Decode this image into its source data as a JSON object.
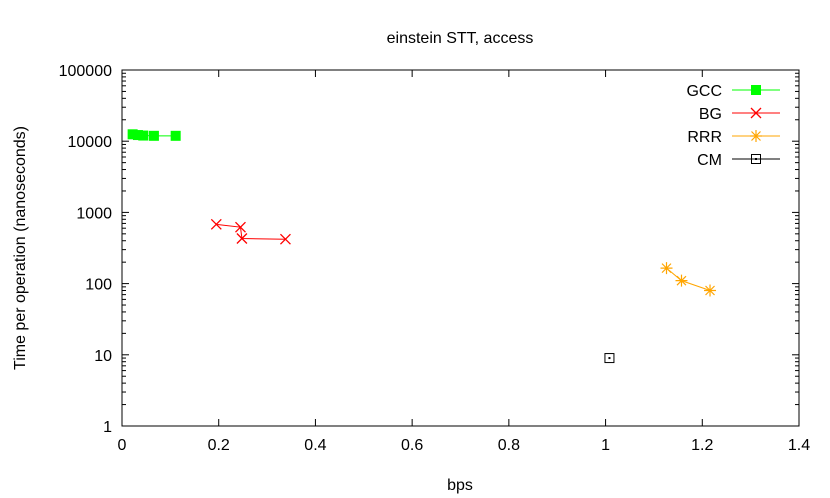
{
  "chart_data": {
    "type": "scatter",
    "title": "einstein STT, access",
    "xlabel": "bps",
    "ylabel": "Time per operation (nanoseconds)",
    "xlim": [
      0,
      1.4
    ],
    "ylim": [
      1,
      100000
    ],
    "y_scale": "log",
    "x_ticks": [
      0,
      0.2,
      0.4,
      0.6,
      0.8,
      1,
      1.2,
      1.4
    ],
    "x_tick_labels": [
      "0",
      "0.2",
      "0.4",
      "0.6",
      "0.8",
      "1",
      "1.2",
      "1.4"
    ],
    "y_ticks": [
      1,
      10,
      100,
      1000,
      10000,
      100000
    ],
    "y_tick_labels": [
      "1",
      "10",
      "100",
      "1000",
      "10000",
      "100000"
    ],
    "grid": false,
    "legend_position": "top-right",
    "series": [
      {
        "name": "GCC",
        "color": "#00ff00",
        "marker": "filled-square",
        "x": [
          0.022,
          0.033,
          0.044,
          0.066,
          0.111
        ],
        "y": [
          12500,
          12200,
          12000,
          11900,
          11900
        ]
      },
      {
        "name": "BG",
        "color": "#ff0000",
        "marker": "cross",
        "x": [
          0.195,
          0.245,
          0.248,
          0.338
        ],
        "y": [
          680,
          620,
          430,
          420
        ]
      },
      {
        "name": "RRR",
        "color": "#ffa500",
        "marker": "star",
        "x": [
          1.126,
          1.157,
          1.216
        ],
        "y": [
          165,
          110,
          80
        ]
      },
      {
        "name": "CM",
        "color": "#000000",
        "marker": "dotted-square",
        "x": [
          1.008
        ],
        "y": [
          9
        ]
      }
    ]
  }
}
